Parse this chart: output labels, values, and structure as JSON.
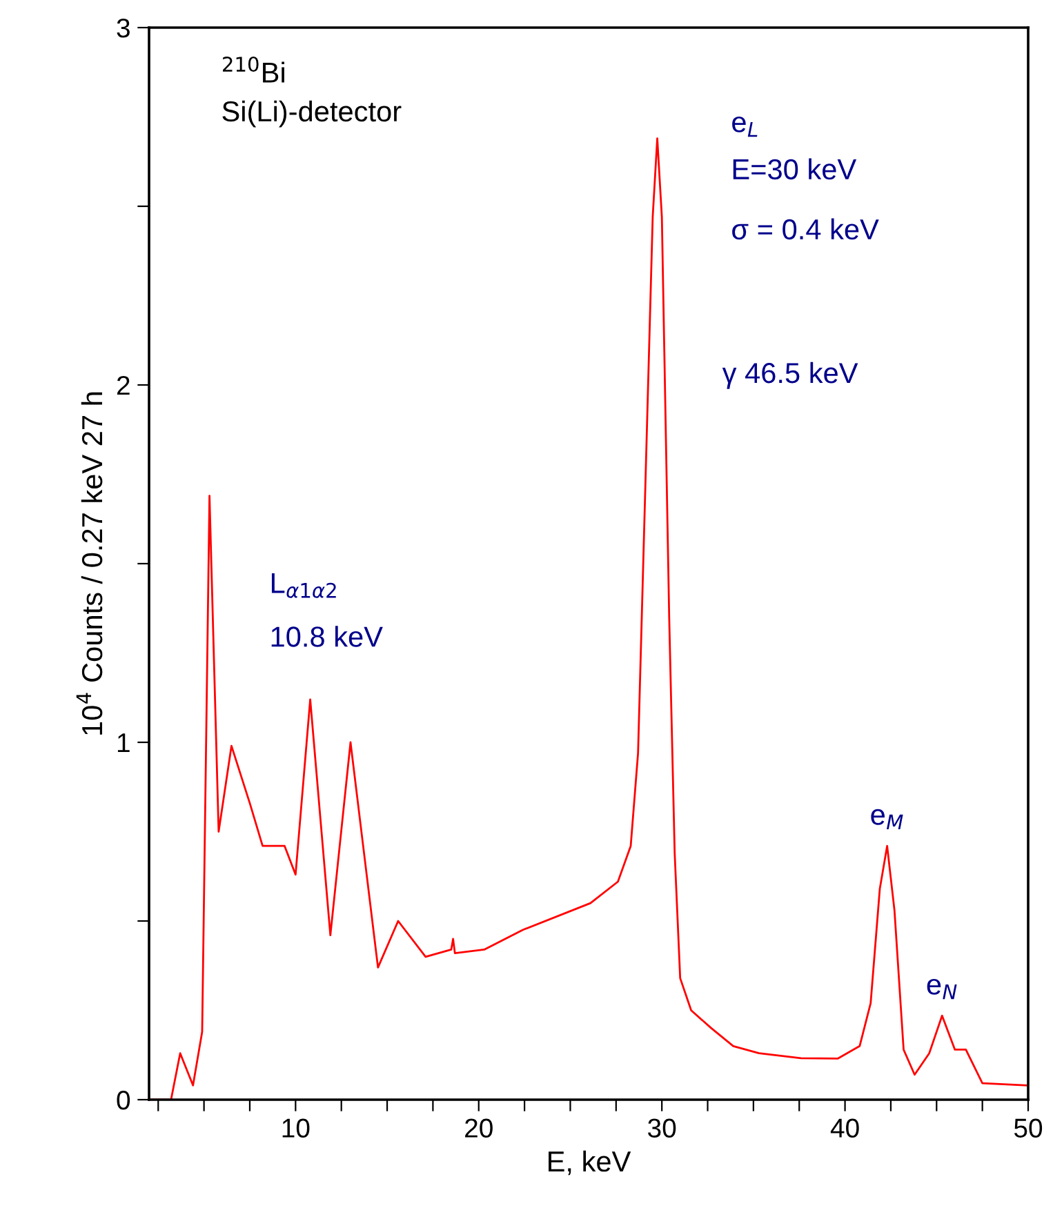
{
  "chart_data": {
    "type": "line",
    "xlabel": "E, keV",
    "ylabel": "10$^{4}$ Counts / 0.27 keV 27 h",
    "xlim": [
      2,
      50
    ],
    "ylim": [
      0,
      3
    ],
    "xticks": [
      {
        "value": 2.5,
        "label": null
      },
      {
        "value": 5,
        "label": null
      },
      {
        "value": 7.5,
        "label": null
      },
      10,
      {
        "value": 12.5,
        "label": null
      },
      {
        "value": 15,
        "label": null
      },
      {
        "value": 17.5,
        "label": null
      },
      20,
      {
        "value": 22.5,
        "label": null
      },
      {
        "value": 25,
        "label": null
      },
      {
        "value": 27.5,
        "label": null
      },
      30,
      {
        "value": 32.5,
        "label": null
      },
      {
        "value": 35,
        "label": null
      },
      {
        "value": 37.5,
        "label": null
      },
      40,
      {
        "value": 42.5,
        "label": null
      },
      {
        "value": 45,
        "label": null
      },
      {
        "value": 47.5,
        "label": null
      },
      50
    ],
    "yticks": [
      0,
      {
        "value": 0.5,
        "label": null
      },
      1,
      {
        "value": 1.5,
        "label": null
      },
      2,
      {
        "value": 2.5,
        "label": null
      },
      3
    ],
    "grid": false,
    "marker": "none",
    "line_style": "solid",
    "series": [
      {
        "color": "#ff0000",
        "x": [
          2.1,
          3.2,
          3.7,
          4.4,
          4.9,
          5.3,
          5.8,
          6.5,
          7.5,
          8.2,
          9.4,
          10.0,
          10.8,
          11.9,
          13.0,
          14.5,
          15.6,
          17.1,
          18.5,
          18.6,
          18.7,
          20.3,
          22.4,
          26.1,
          27.6,
          28.3,
          28.7,
          29.1,
          29.5,
          29.75,
          30.0,
          30.4,
          30.7,
          31.0,
          31.6,
          32.7,
          33.9,
          35.3,
          37.6,
          39.6,
          40.8,
          41.4,
          41.9,
          42.3,
          42.7,
          43.2,
          43.8,
          44.6,
          45.3,
          46.0,
          46.6,
          47.5,
          50.0
        ],
        "values": [
          0.0,
          0.0,
          0.13,
          0.04,
          0.19,
          1.69,
          0.75,
          0.99,
          0.83,
          0.71,
          0.71,
          0.63,
          1.12,
          0.46,
          1.0,
          0.37,
          0.5,
          0.4,
          0.42,
          0.45,
          0.41,
          0.42,
          0.475,
          0.55,
          0.61,
          0.71,
          0.97,
          1.72,
          2.47,
          2.69,
          2.47,
          1.35,
          0.69,
          0.34,
          0.25,
          0.2,
          0.15,
          0.13,
          0.116,
          0.115,
          0.15,
          0.27,
          0.59,
          0.71,
          0.53,
          0.14,
          0.07,
          0.13,
          0.235,
          0.14,
          0.14,
          0.046,
          0.04
        ]
      }
    ],
    "annotations": [
      "$^{210}$Bi",
      "Si(Li)-detector",
      "e$_{L}$",
      "E=30 keV",
      "σ = 0.4 keV",
      "γ 46.5 keV",
      "L$_{α1α2}$",
      "10.8 keV",
      {
        "text": "e$_{M}$",
        "x": 42.3,
        "y": 0.71
      },
      {
        "text": "e$_{N}$",
        "x": 45.3,
        "y": 0.235
      }
    ]
  }
}
